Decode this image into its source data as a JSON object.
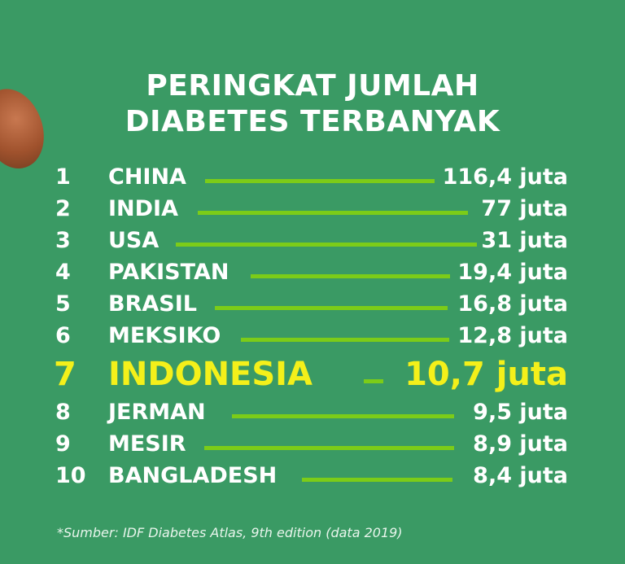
{
  "title_line1": "PERINGKAT JUMLAH",
  "title_line2": "DIABETES TERBANYAK",
  "rows": [
    {
      "rank": "1",
      "country": "CHINA",
      "value": "116,4 juta",
      "number": 116.4
    },
    {
      "rank": "2",
      "country": "INDIA",
      "value": "77 juta",
      "number": 77
    },
    {
      "rank": "3",
      "country": "USA",
      "value": "31 juta",
      "number": 31
    },
    {
      "rank": "4",
      "country": "PAKISTAN",
      "value": "19,4 juta",
      "number": 19.4
    },
    {
      "rank": "5",
      "country": "BRASIL",
      "value": "16,8 juta",
      "number": 16.8
    },
    {
      "rank": "6",
      "country": "MEKSIKO",
      "value": "12,8 juta",
      "number": 12.8
    },
    {
      "rank": "7",
      "country": "INDONESIA",
      "value": "10,7 juta",
      "number": 10.7,
      "highlight": true
    },
    {
      "rank": "8",
      "country": "JERMAN",
      "value": "9,5 juta",
      "number": 9.5
    },
    {
      "rank": "9",
      "country": "MESIR",
      "value": "8,9 juta",
      "number": 8.9
    },
    {
      "rank": "10",
      "country": "BANGLADESH",
      "value": "8,4 juta",
      "number": 8.4
    }
  ],
  "source": "*Sumber: IDF Diabetes Atlas, 9th edition (data 2019)",
  "colors": {
    "background": "#3a9a64",
    "bar": "#7ccc18",
    "highlight": "#f4f01a",
    "text": "#ffffff"
  }
}
